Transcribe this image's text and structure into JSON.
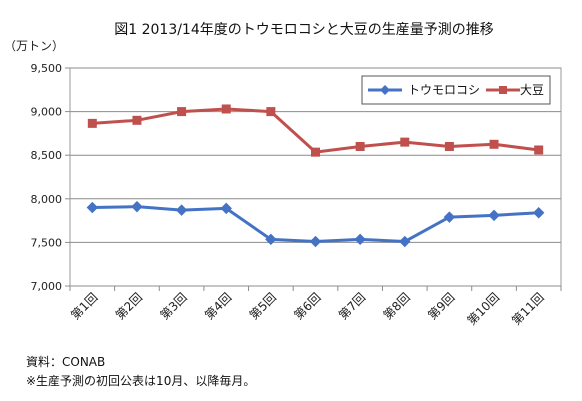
{
  "chart_data": {
    "type": "line",
    "title": "図1 2013/14年度のトウモロコシと大豆の生産量予測の推移",
    "ylabel": "（万トン）",
    "ylim": [
      7000,
      9500
    ],
    "yticks": [
      "7,000",
      "7,500",
      "8,000",
      "8,500",
      "9,000",
      "9,500"
    ],
    "ytick_values": [
      7000,
      7500,
      8000,
      8500,
      9000,
      9500
    ],
    "categories": [
      "第1回",
      "第2回",
      "第3回",
      "第4回",
      "第5回",
      "第6回",
      "第7回",
      "第8回",
      "第9回",
      "第10回",
      "第11回"
    ],
    "grid": true,
    "legend_position": "top-right",
    "series": [
      {
        "name": "トウモロコシ",
        "color": "#4472c4",
        "marker": "diamond",
        "values": [
          7900,
          7910,
          7870,
          7890,
          7535,
          7510,
          7535,
          7510,
          7790,
          7810,
          7840
        ]
      },
      {
        "name": "大豆",
        "color": "#c0504d",
        "marker": "square",
        "values": [
          8865,
          8900,
          9000,
          9030,
          9000,
          8535,
          8600,
          8650,
          8600,
          8625,
          8560
        ]
      }
    ]
  },
  "notes": {
    "source": "資料：CONAB",
    "footnote": "※生産予測の初回公表は10月、以降毎月。"
  }
}
